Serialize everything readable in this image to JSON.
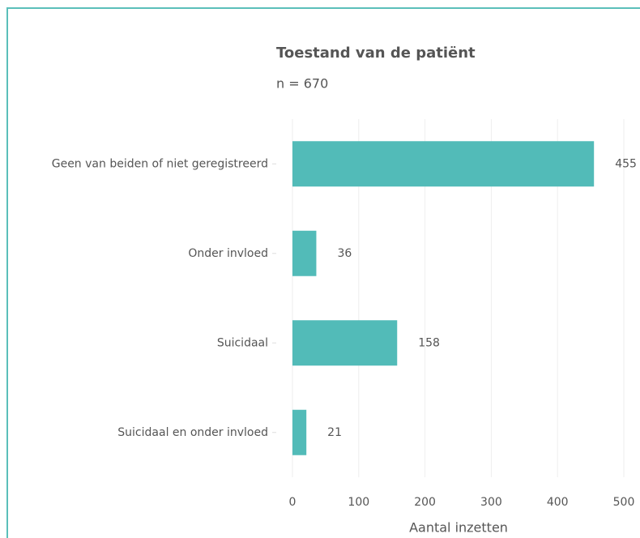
{
  "chart_data": {
    "type": "bar",
    "orientation": "horizontal",
    "title": "Toestand van de patiënt",
    "subtitle": "n = 670",
    "categories": [
      "Geen van beiden of niet geregistreerd",
      "Onder invloed",
      "Suicidaal",
      "Suicidaal en onder invloed"
    ],
    "values": [
      455,
      36,
      158,
      21
    ],
    "color": "#52bbb8",
    "xlabel": "Aantal inzetten",
    "xlim": [
      0,
      500
    ],
    "xticks": [
      0,
      100,
      200,
      300,
      400,
      500
    ],
    "grid": true
  }
}
